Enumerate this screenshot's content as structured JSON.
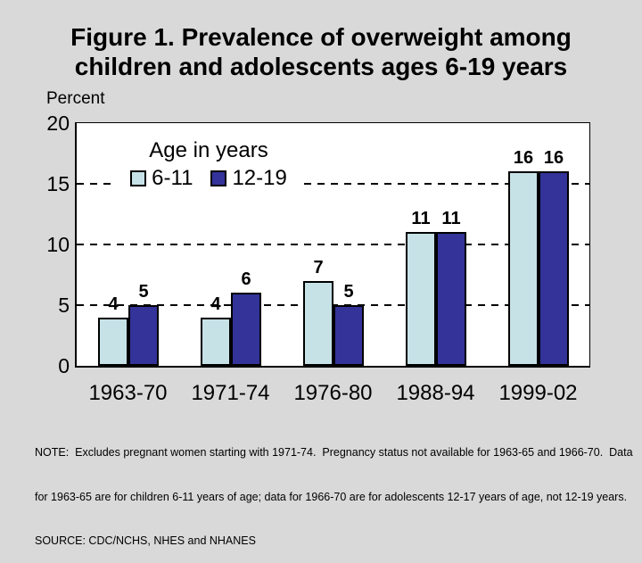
{
  "slide": {
    "background_color": "#d9d9d9",
    "title_line1": "Figure 1. Prevalence of overweight among",
    "title_line2": "children and adolescents ages 6-19 years"
  },
  "chart_data": {
    "type": "bar",
    "title": "Figure 1. Prevalence of overweight among children and adolescents ages 6-19 years",
    "ylabel": "Percent",
    "ylim": [
      0,
      20
    ],
    "yticks": [
      0,
      5,
      10,
      15,
      20
    ],
    "gridlines_at": [
      5,
      10,
      15
    ],
    "grid_style": "dashed",
    "plot_background": "#ffffff",
    "legend_title": "Age in years",
    "legend_position": "inside-top-left",
    "categories": [
      "1963-70",
      "1971-74",
      "1976-80",
      "1988-94",
      "1999-02"
    ],
    "series": [
      {
        "name": "6-11",
        "color": "#c6e2e7",
        "values": [
          4,
          4,
          7,
          11,
          16
        ]
      },
      {
        "name": "12-19",
        "color": "#333399",
        "values": [
          5,
          6,
          5,
          11,
          16
        ]
      }
    ],
    "bar_labels_shown": true
  },
  "footnote": {
    "line1": "NOTE:  Excludes pregnant women starting with 1971-74.  Pregnancy status not available for 1963-65 and 1966-70.  Data",
    "line2": "for 1963-65 are for children 6-11 years of age; data for 1966-70 are for adolescents 12-17 years of age, not 12-19 years.",
    "line3": "SOURCE: CDC/NCHS, NHES and NHANES"
  }
}
